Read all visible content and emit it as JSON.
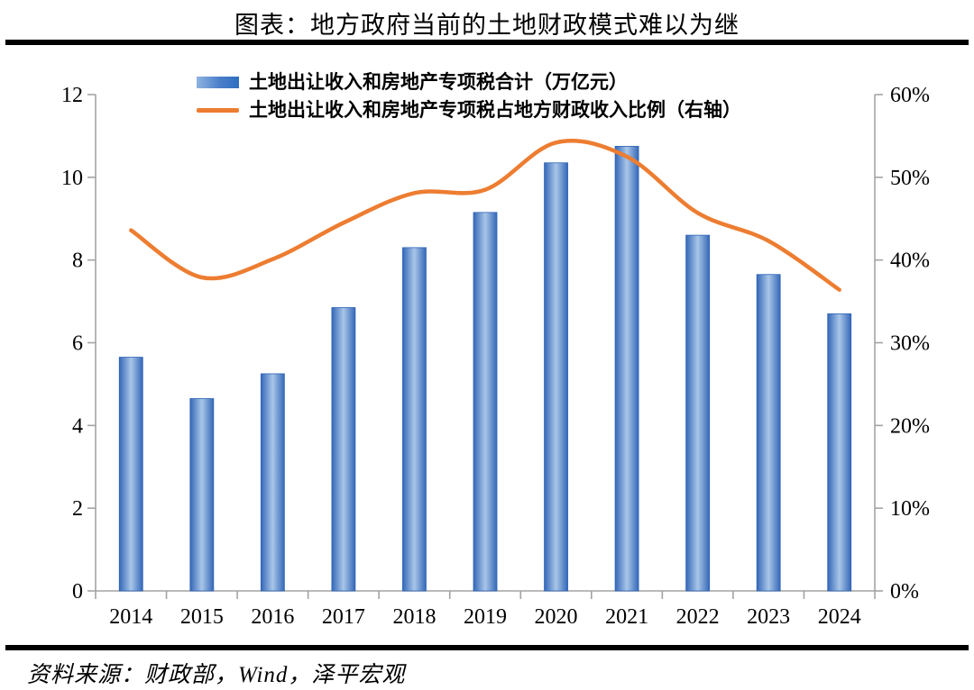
{
  "title": "图表：地方政府当前的土地财政模式难以为继",
  "legend": {
    "bar": {
      "label": "土地出让收入和房地产专项税合计（万亿元）"
    },
    "line": {
      "label": "土地出让收入和房地产专项税占地方财政收入比例（右轴）"
    }
  },
  "source_note": "资料来源：财政部，Wind，泽平宏观",
  "colors": {
    "bar_edge": "#3568B8",
    "bar_center": "#A9C6E8",
    "bar_border": "#2B62B5",
    "line": "#ED7D31",
    "axis": "#A3A3A3",
    "text": "#000000",
    "rule": "#000000"
  },
  "chart_data": {
    "type": "bar+line",
    "categories": [
      "2014",
      "2015",
      "2016",
      "2017",
      "2018",
      "2019",
      "2020",
      "2021",
      "2022",
      "2023",
      "2024"
    ],
    "series": [
      {
        "name": "土地出让收入和房地产专项税合计（万亿元）",
        "type": "bar",
        "axis": "left",
        "values": [
          5.65,
          4.65,
          5.25,
          6.85,
          8.3,
          9.15,
          10.35,
          10.75,
          8.6,
          7.65,
          6.7
        ]
      },
      {
        "name": "土地出让收入和房地产专项税占地方财政收入比例（右轴）",
        "type": "line",
        "axis": "right",
        "values": [
          43.6,
          37.9,
          40.1,
          44.5,
          48.1,
          48.5,
          54.2,
          52.5,
          45.7,
          42.3,
          36.4
        ]
      }
    ],
    "left_axis": {
      "min": 0,
      "max": 12,
      "step": 2,
      "tick_labels": [
        "0",
        "2",
        "4",
        "6",
        "8",
        "10",
        "12"
      ]
    },
    "right_axis": {
      "min": 0,
      "max": 60,
      "step": 10,
      "tick_labels": [
        "0%",
        "10%",
        "20%",
        "30%",
        "40%",
        "50%",
        "60%"
      ]
    },
    "grid": false,
    "legend_position": "top"
  }
}
